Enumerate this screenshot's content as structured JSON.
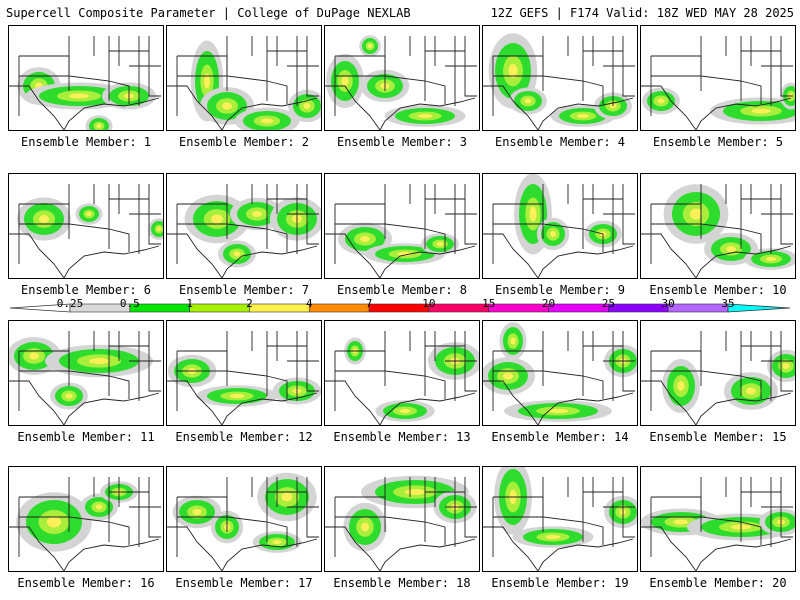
{
  "header": {
    "left": "Supercell Composite Parameter | College of DuPage NEXLAB",
    "right": "12Z GEFS | F174 Valid: 18Z WED MAY 28 2025"
  },
  "colorbar": {
    "ticks": [
      "0.25",
      "0.5",
      "1",
      "2",
      "4",
      "7",
      "10",
      "15",
      "20",
      "25",
      "30",
      "35"
    ],
    "colors": [
      "#d9d9d9",
      "#00e600",
      "#a6f000",
      "#fff04c",
      "#ff8c00",
      "#ff0000",
      "#ff0066",
      "#ff00cc",
      "#e600ff",
      "#8c00ff",
      "#b266ff",
      "#00ffff"
    ]
  },
  "panels": [
    {
      "label": "Ensemble Member: 1"
    },
    {
      "label": "Ensemble Member: 2"
    },
    {
      "label": "Ensemble Member: 3"
    },
    {
      "label": "Ensemble Member: 4"
    },
    {
      "label": "Ensemble Member: 5"
    },
    {
      "label": "Ensemble Member: 6"
    },
    {
      "label": "Ensemble Member: 7"
    },
    {
      "label": "Ensemble Member: 8"
    },
    {
      "label": "Ensemble Member: 9"
    },
    {
      "label": "Ensemble Member: 10"
    },
    {
      "label": "Ensemble Member: 11"
    },
    {
      "label": "Ensemble Member: 12"
    },
    {
      "label": "Ensemble Member: 13"
    },
    {
      "label": "Ensemble Member: 14"
    },
    {
      "label": "Ensemble Member: 15"
    },
    {
      "label": "Ensemble Member: 16"
    },
    {
      "label": "Ensemble Member: 17"
    },
    {
      "label": "Ensemble Member: 18"
    },
    {
      "label": "Ensemble Member: 19"
    },
    {
      "label": "Ensemble Member: 20"
    }
  ]
}
